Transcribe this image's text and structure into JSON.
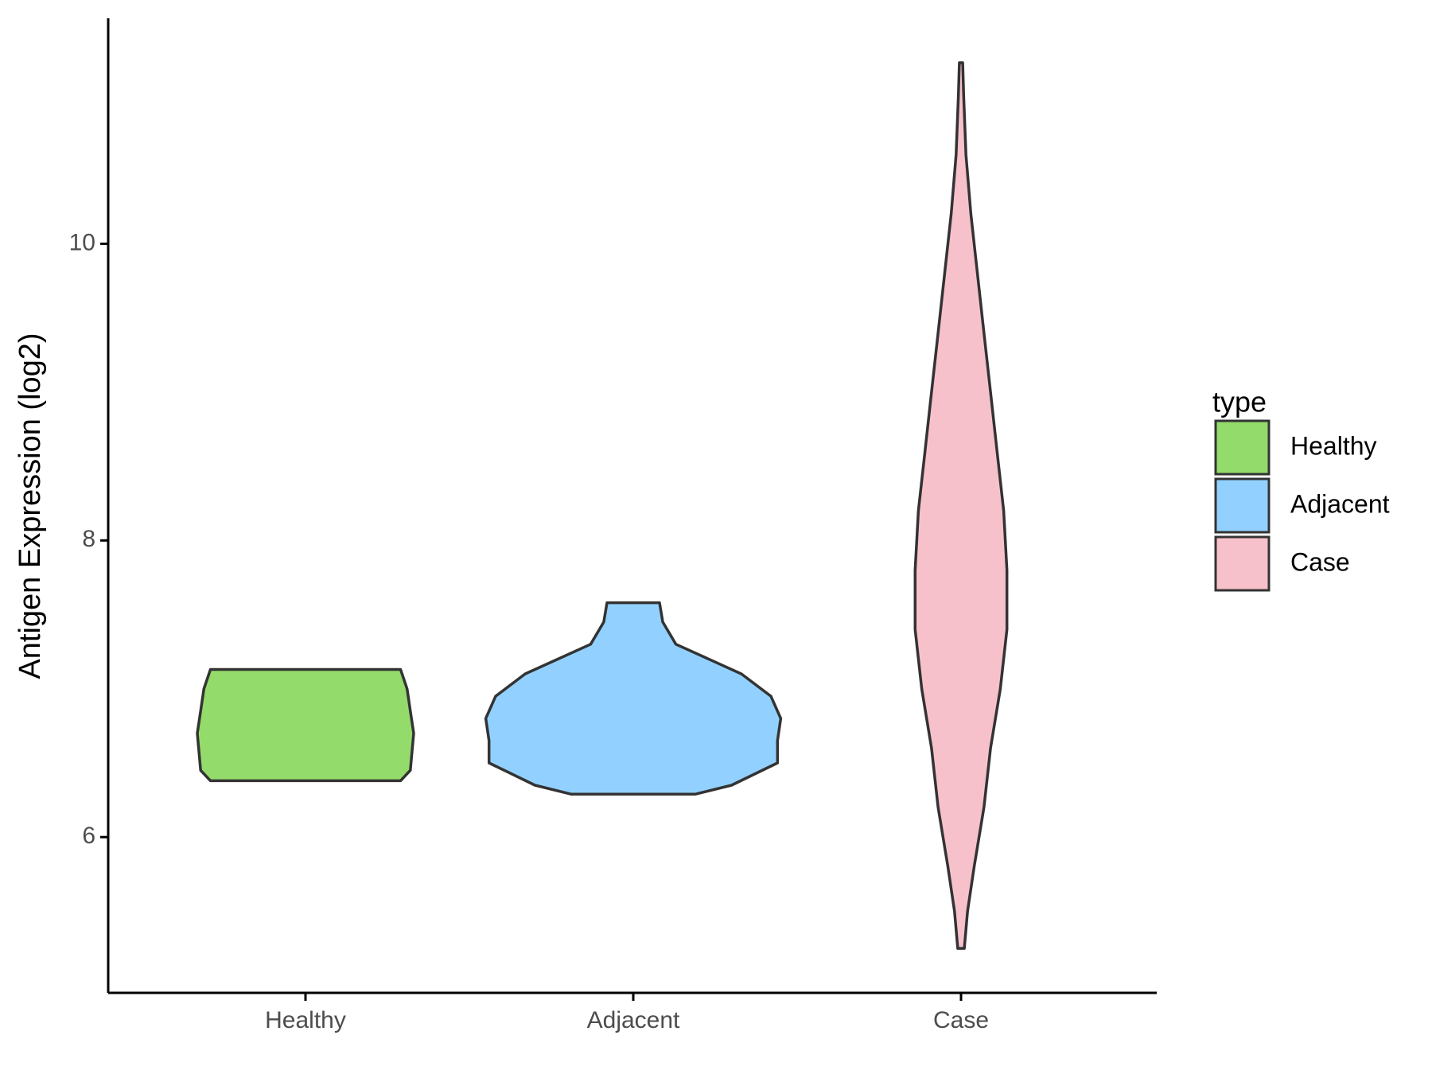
{
  "chart_data": {
    "type": "violin",
    "ylabel": "Antigen Expression (log2)",
    "legend_title": "type",
    "legend": "right",
    "categories": [
      "Healthy",
      "Adjacent",
      "Case"
    ],
    "ylim": [
      4.95,
      11.52
    ],
    "yticks": [
      6,
      8,
      10
    ],
    "outline_color": "#333333",
    "series": [
      {
        "name": "Healthy",
        "color": "#93DB6A",
        "density": {
          "y": [
            6.38,
            6.45,
            6.7,
            6.85,
            7.0,
            7.13
          ],
          "width": [
            0.29,
            0.32,
            0.33,
            0.32,
            0.31,
            0.29
          ]
        }
      },
      {
        "name": "Adjacent",
        "color": "#92D1FF",
        "density": {
          "y": [
            6.29,
            6.35,
            6.5,
            6.65,
            6.8,
            6.95,
            7.1,
            7.3,
            7.45,
            7.58
          ],
          "width": [
            0.19,
            0.3,
            0.44,
            0.44,
            0.45,
            0.42,
            0.33,
            0.13,
            0.09,
            0.08
          ]
        }
      },
      {
        "name": "Case",
        "color": "#F7C1CB",
        "density": {
          "y": [
            5.25,
            5.5,
            5.8,
            6.2,
            6.6,
            7.0,
            7.4,
            7.8,
            8.2,
            8.6,
            9.0,
            9.4,
            9.8,
            10.2,
            10.6,
            11.0,
            11.22
          ],
          "width": [
            0.01,
            0.02,
            0.04,
            0.07,
            0.09,
            0.12,
            0.14,
            0.14,
            0.13,
            0.11,
            0.09,
            0.07,
            0.05,
            0.03,
            0.015,
            0.008,
            0.005
          ]
        }
      }
    ]
  }
}
